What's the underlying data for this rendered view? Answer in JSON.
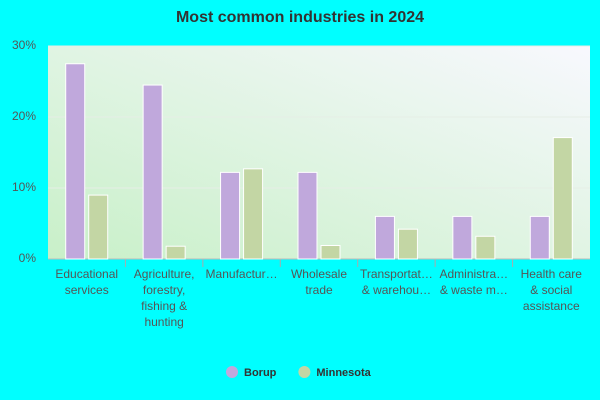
{
  "chart_data": {
    "type": "bar",
    "title": "Most common industries in 2024",
    "categories": [
      "Educational services",
      "Agriculture, forestry, fishing & hunting",
      "Manufactur…",
      "Wholesale trade",
      "Transportat… & warehou…",
      "Administra… & waste m…",
      "Health care & social assistance"
    ],
    "series": [
      {
        "name": "Borup",
        "color": "#c0a8dc",
        "values": [
          27.5,
          24.5,
          12.2,
          12.2,
          6.0,
          6.0,
          6.0
        ]
      },
      {
        "name": "Minnesota",
        "color": "#c3d6a4",
        "values": [
          9.0,
          1.8,
          12.7,
          1.9,
          4.2,
          3.2,
          17.1
        ]
      }
    ],
    "ylim": [
      0,
      30
    ],
    "yticks": [
      {
        "value": 0,
        "label": "0%"
      },
      {
        "value": 10,
        "label": "10%"
      },
      {
        "value": 20,
        "label": "20%"
      },
      {
        "value": 30,
        "label": "30%"
      }
    ],
    "grid": true
  }
}
